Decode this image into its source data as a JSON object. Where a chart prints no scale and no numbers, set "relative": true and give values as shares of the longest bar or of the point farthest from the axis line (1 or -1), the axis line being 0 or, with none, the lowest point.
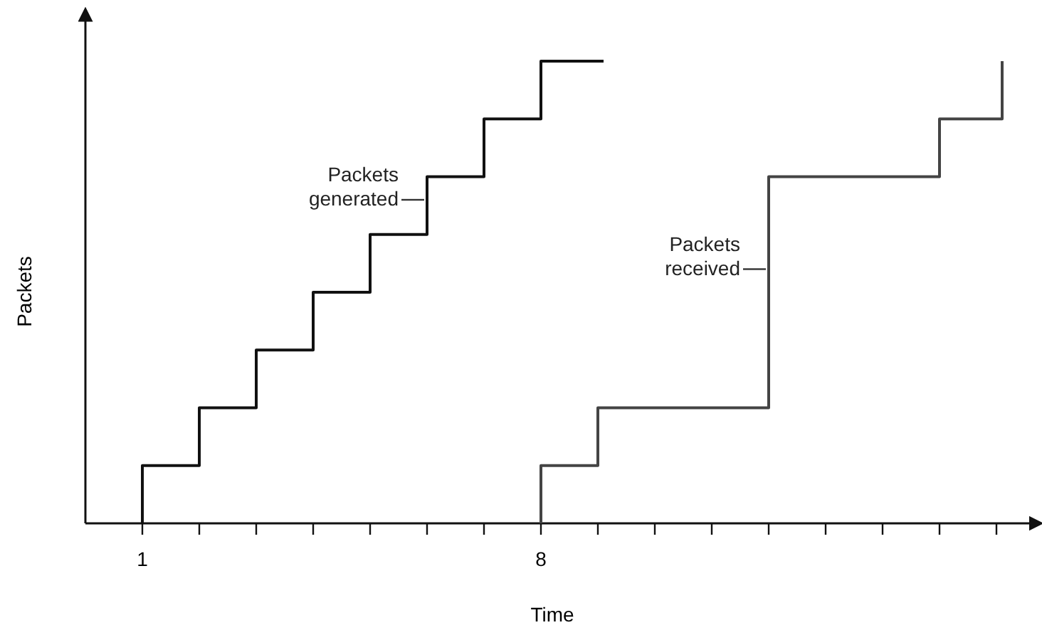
{
  "chart_data": {
    "type": "step",
    "xlabel": "Time",
    "ylabel": "Packets",
    "relative": true,
    "xlim": [
      0,
      16.7
    ],
    "xticks": [
      1,
      {
        "value": 2,
        "label": null
      },
      {
        "value": 3,
        "label": null
      },
      {
        "value": 4,
        "label": null
      },
      {
        "value": 5,
        "label": null
      },
      {
        "value": 6,
        "label": null
      },
      {
        "value": 7,
        "label": null
      },
      8,
      {
        "value": 9,
        "label": null
      },
      {
        "value": 10,
        "label": null
      },
      {
        "value": 11,
        "label": null
      },
      {
        "value": 12,
        "label": null
      },
      {
        "value": 13,
        "label": null
      },
      {
        "value": 14,
        "label": null
      },
      {
        "value": 15,
        "label": null
      },
      {
        "value": 16,
        "label": null
      }
    ],
    "series": [
      {
        "color": "#111111",
        "x": [
          1,
          1,
          2,
          3,
          4,
          5,
          6,
          7,
          8,
          9.1
        ],
        "values": [
          0,
          0.125,
          0.25,
          0.375,
          0.5,
          0.625,
          0.75,
          0.875,
          1,
          1
        ]
      },
      {
        "color": "#444444",
        "x": [
          8,
          8,
          9,
          12,
          15,
          16.1
        ],
        "values": [
          0,
          0.125,
          0.25,
          0.75,
          0.875,
          1
        ]
      }
    ],
    "annotations": [
      {
        "text": "Packets generated",
        "x": 6,
        "y": 0.7
      },
      {
        "text": "Packets received",
        "x": 12,
        "y": 0.55
      }
    ]
  }
}
